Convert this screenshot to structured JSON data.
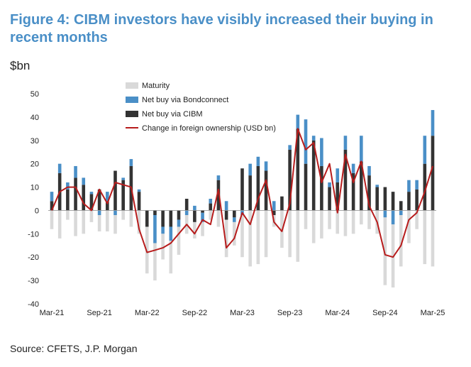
{
  "title": "Figure 4: CIBM investors have visibly increased their buying in recent months",
  "unit_label": "$bn",
  "source": "Source: CFETS, J.P. Morgan",
  "colors": {
    "maturity": "#d9d9d9",
    "bondconnect": "#4a8fc7",
    "cibm": "#333333",
    "ownership": "#b71c1c"
  },
  "chart_data": {
    "type": "bar",
    "stacked": true,
    "title": "Figure 4: CIBM investors have visibly increased their buying in recent months",
    "ylabel": "$bn",
    "ylim": [
      -40,
      50
    ],
    "yticks": [
      50,
      40,
      30,
      20,
      10,
      0,
      -10,
      -20,
      -30,
      -40
    ],
    "xtick_labels": [
      "Mar-21",
      "Sep-21",
      "Mar-22",
      "Sep-22",
      "Mar-23",
      "Sep-23",
      "Mar-24",
      "Sep-24",
      "Mar-25"
    ],
    "categories": [
      "Mar-21",
      "Apr-21",
      "May-21",
      "Jun-21",
      "Jul-21",
      "Aug-21",
      "Sep-21",
      "Oct-21",
      "Nov-21",
      "Dec-21",
      "Jan-22",
      "Feb-22",
      "Mar-22",
      "Apr-22",
      "May-22",
      "Jun-22",
      "Jul-22",
      "Aug-22",
      "Sep-22",
      "Oct-22",
      "Nov-22",
      "Dec-22",
      "Jan-23",
      "Feb-23",
      "Mar-23",
      "Apr-23",
      "May-23",
      "Jun-23",
      "Jul-23",
      "Aug-23",
      "Sep-23",
      "Oct-23",
      "Nov-23",
      "Dec-23",
      "Jan-24",
      "Feb-24",
      "Mar-24",
      "Apr-24",
      "May-24",
      "Jun-24",
      "Jul-24",
      "Aug-24",
      "Sep-24",
      "Oct-24",
      "Nov-24",
      "Dec-24",
      "Jan-25",
      "Feb-25",
      "Mar-25"
    ],
    "legend": [
      "Maturity",
      "Net buy via Bondconnect",
      "Net buy via CIBM",
      "Change in foreign ownership (USD bn)"
    ],
    "legend_position": "top-left",
    "series": [
      {
        "name": "Maturity",
        "type": "bar",
        "values": [
          -8,
          -12,
          -4,
          -11,
          -10,
          -5,
          -7,
          -9,
          -8,
          -4,
          -7,
          -10,
          -20,
          -16,
          -11,
          -14,
          -12,
          -8,
          -7,
          -6,
          -4,
          -7,
          -16,
          -10,
          -18,
          -24,
          -23,
          -20,
          -5,
          -16,
          -20,
          -22,
          -8,
          -14,
          -12,
          -8,
          -10,
          -11,
          -10,
          -6,
          -8,
          -10,
          -29,
          -27,
          -22,
          -14,
          -8,
          -23,
          -24
        ]
      },
      {
        "name": "Net buy via Bondconnect",
        "type": "bar",
        "values": [
          4,
          4,
          3,
          5,
          3,
          1,
          -2,
          4,
          -2,
          1,
          3,
          1,
          0,
          -12,
          -3,
          -6,
          -3,
          -2,
          2,
          -4,
          2,
          2,
          4,
          -2,
          -2,
          5,
          4,
          4,
          4,
          0,
          2,
          6,
          19,
          2,
          12,
          2,
          6,
          6,
          4,
          11,
          4,
          1,
          -3,
          -6,
          -2,
          5,
          4,
          12,
          11
        ]
      },
      {
        "name": "Net buy via CIBM",
        "type": "bar",
        "values": [
          4,
          16,
          9,
          14,
          11,
          7,
          9,
          4,
          17,
          13,
          19,
          8,
          -7,
          -2,
          -7,
          -7,
          -4,
          5,
          -5,
          -1,
          3,
          13,
          -4,
          -3,
          18,
          15,
          19,
          17,
          -2,
          6,
          26,
          35,
          20,
          30,
          19,
          10,
          12,
          26,
          16,
          21,
          15,
          10,
          10,
          8,
          4,
          8,
          9,
          20,
          32
        ]
      },
      {
        "name": "Change in foreign ownership (USD bn)",
        "type": "line",
        "values": [
          0,
          8,
          10,
          10,
          3,
          0,
          9,
          3,
          12,
          11,
          10,
          -8,
          -18,
          -17,
          -16,
          -14,
          -10,
          -6,
          -10,
          -4,
          -6,
          9,
          -16,
          -12,
          -1,
          -6,
          5,
          13,
          -5,
          -9,
          3,
          35,
          26,
          29,
          12,
          20,
          -1,
          24,
          12,
          21,
          2,
          -5,
          -19,
          -20,
          -15,
          -4,
          -1,
          8,
          19
        ]
      }
    ]
  }
}
